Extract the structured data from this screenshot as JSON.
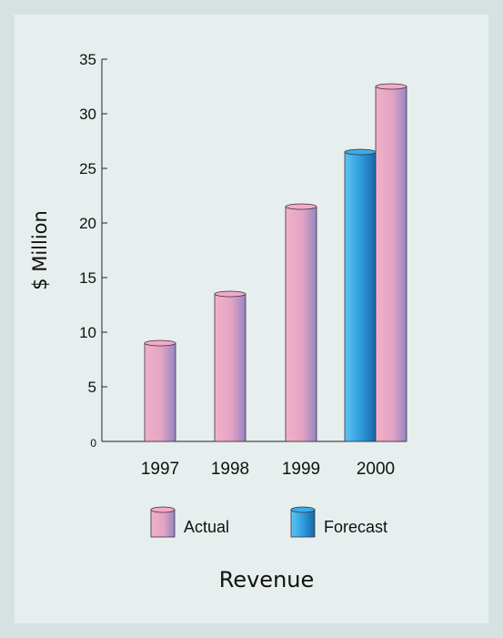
{
  "chart_data": {
    "type": "bar",
    "title": "",
    "caption": "Revenue",
    "xlabel": "",
    "ylabel": "$ Million",
    "ylim": [
      0,
      35
    ],
    "yticks": [
      0,
      5,
      10,
      15,
      20,
      25,
      30,
      35
    ],
    "categories": [
      "1997",
      "1998",
      "1999",
      "2000"
    ],
    "series": [
      {
        "name": "Actual",
        "values": [
          9,
          13.5,
          21.5,
          32.5
        ],
        "color": "#e8a4c0",
        "color_dark": "#9a86c4"
      },
      {
        "name": "Forecast",
        "values": [
          null,
          null,
          null,
          26.5
        ],
        "color": "#42b0e8",
        "color_dark": "#1a6fb0"
      }
    ],
    "legend": {
      "placement": "bottom",
      "entries": [
        "Actual",
        "Forecast"
      ]
    },
    "grid": false,
    "bar_style": "3d-cylinder"
  }
}
